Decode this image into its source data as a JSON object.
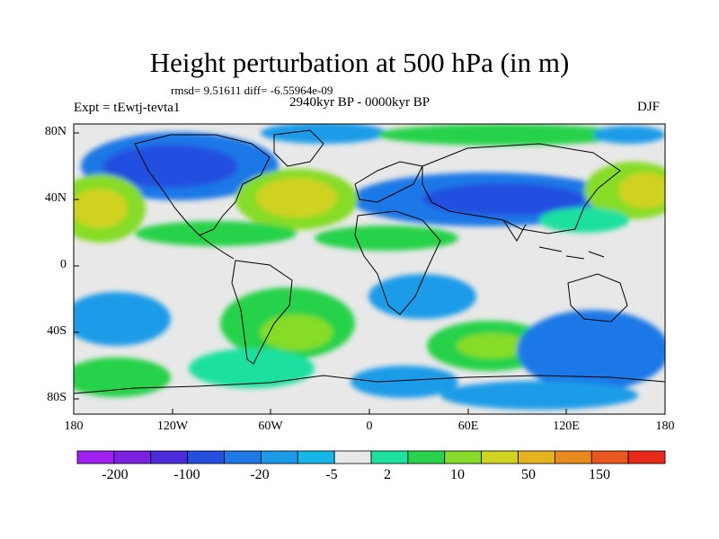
{
  "title": "Height perturbation at 500 hPa (in m)",
  "stats": "rmsd= 9.51611 diff= -6.55964e-09",
  "left_label": "Expt = tEwtj-tevta1",
  "center_label": "2940kyr BP - 0000kyr BP",
  "right_label": "DJF",
  "lat_ticks": [
    "80N",
    "40N",
    "0",
    "40S",
    "80S"
  ],
  "lon_ticks": [
    "180",
    "120W",
    "60W",
    "0",
    "60E",
    "120E",
    "180"
  ],
  "colorbar": {
    "colors": [
      "#a020f0",
      "#7b22e0",
      "#4b2bdc",
      "#2450e0",
      "#1f78e6",
      "#1c9be8",
      "#16b6e8",
      "#e8e8e8",
      "#1ee0a0",
      "#28d24a",
      "#86dc28",
      "#d0d224",
      "#e6b41e",
      "#e88a1e",
      "#e8581e",
      "#e82a1a"
    ],
    "labels": [
      "-200",
      "-100",
      "-20",
      "-5",
      "2",
      "10",
      "50",
      "150"
    ]
  },
  "palette": {
    "land": "#000000",
    "ocean_bg": "#e8e8e8"
  }
}
